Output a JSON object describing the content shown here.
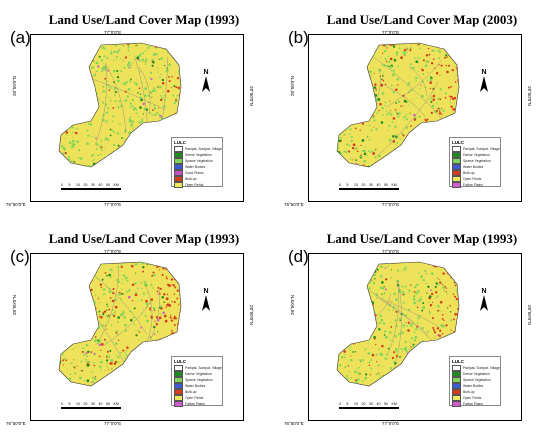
{
  "panels": [
    {
      "id": "a",
      "title": "Land Use/Land Cover Map (1993)",
      "letter": "(a)",
      "coords": {
        "top": "77°0'0\"E",
        "bottom": "77°0'0\"E",
        "bottom_left": "76°50'0\"E",
        "left": "28°50'0\"N",
        "right": "28°50'0\"N"
      },
      "legend_title": "LULC",
      "legend_items": [
        {
          "label": "Panipat, Sonipat, Village",
          "color": "#ffffff"
        },
        {
          "label": "Dense Vegetation",
          "color": "#1e8b1e"
        },
        {
          "label": "Sparse Vegetation",
          "color": "#7fd65a"
        },
        {
          "label": "Water Bodies",
          "color": "#3b5bd6"
        },
        {
          "label": "Good Plains",
          "color": "#c44fc4"
        },
        {
          "label": "Built-up",
          "color": "#d43c1e"
        },
        {
          "label": "Open Fields",
          "color": "#f0ea60"
        }
      ],
      "urban_intensity": 0.25
    },
    {
      "id": "b",
      "title": "Land Use/Land Cover Map (2003)",
      "letter": "(b)",
      "coords": {
        "top": "77°0'0\"E",
        "bottom": "77°0'0\"E",
        "bottom_left": "76°50'0\"E",
        "left": "28°50'0\"N",
        "right": "28°50'0\"N"
      },
      "legend_title": "LULC",
      "legend_items": [
        {
          "label": "Panipat, Sonipat, Village",
          "color": "#ffffff"
        },
        {
          "label": "Dense Vegetation",
          "color": "#1e8b1e"
        },
        {
          "label": "Sparse Vegetation",
          "color": "#7fd65a"
        },
        {
          "label": "Water Bodies",
          "color": "#3b5bd6"
        },
        {
          "label": "Built-up",
          "color": "#d43c1e"
        },
        {
          "label": "Open Fields",
          "color": "#f0ea60"
        },
        {
          "label": "Fallow Plains",
          "color": "#d05ad0"
        }
      ],
      "urban_intensity": 0.55
    },
    {
      "id": "c",
      "title": "Land Use/Land Cover Map (1993)",
      "letter": "(c)",
      "coords": {
        "top": "77°0'0\"E",
        "bottom": "77°0'0\"E",
        "bottom_left": "76°50'0\"E",
        "left": "28°50'0\"N",
        "right": "28°50'0\"N"
      },
      "legend_title": "LULC",
      "legend_items": [
        {
          "label": "Panipat, Sonipat, Village",
          "color": "#ffffff"
        },
        {
          "label": "Dense Vegetation",
          "color": "#1e8b1e"
        },
        {
          "label": "Sparse Vegetation",
          "color": "#7fd65a"
        },
        {
          "label": "Water Bodies",
          "color": "#3b5bd6"
        },
        {
          "label": "Built-up",
          "color": "#d43c1e"
        },
        {
          "label": "Open Fields",
          "color": "#f0ea60"
        },
        {
          "label": "Fallow Plains",
          "color": "#d05ad0"
        }
      ],
      "urban_intensity": 0.75
    },
    {
      "id": "d",
      "title": "Land Use/Land Cover Map (1993)",
      "letter": "(d)",
      "coords": {
        "top": "77°0'0\"E",
        "bottom": "77°0'0\"E",
        "bottom_left": "76°50'0\"E",
        "left": "28°50'0\"N",
        "right": "28°50'0\"N"
      },
      "legend_title": "LULC",
      "legend_items": [
        {
          "label": "Panipat, Sonipat, Village",
          "color": "#ffffff"
        },
        {
          "label": "Dense Vegetation",
          "color": "#1e8b1e"
        },
        {
          "label": "Sparse Vegetation",
          "color": "#7fd65a"
        },
        {
          "label": "Water Bodies",
          "color": "#3b5bd6"
        },
        {
          "label": "Built-up",
          "color": "#d43c1e"
        },
        {
          "label": "Open Fields",
          "color": "#f0ea60"
        },
        {
          "label": "Fallow Plains",
          "color": "#d05ad0"
        }
      ],
      "urban_intensity": 0.45
    }
  ],
  "north_label": "N",
  "scale_ticks": [
    "0",
    "5",
    "10",
    "20",
    "30",
    "40",
    "50"
  ],
  "scale_unit": "KM"
}
